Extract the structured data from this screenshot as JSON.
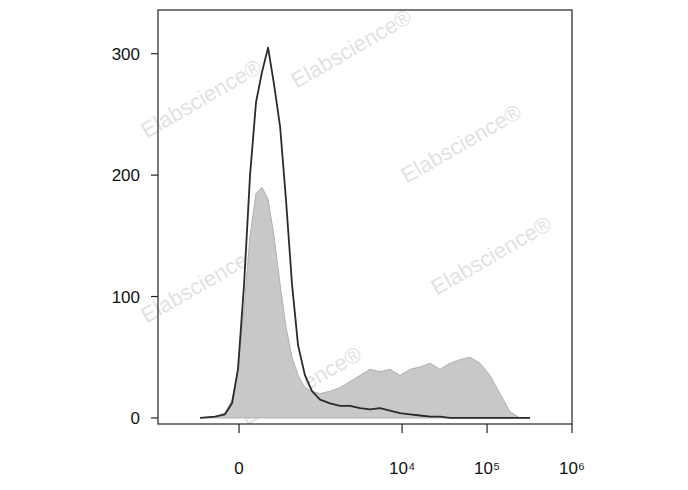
{
  "chart_data": {
    "type": "line",
    "log": "x",
    "x": [
      -305,
      -168,
      -94,
      -46,
      -7,
      33,
      73,
      115,
      160,
      210,
      264,
      327,
      396,
      478,
      572,
      700,
      855,
      1070,
      1407,
      1853,
      2434,
      3198,
      4193,
      5495,
      7206,
      9447,
      12400,
      16270,
      21330,
      27960,
      36650,
      48100,
      63070,
      82690,
      108400,
      142200,
      186500,
      244600,
      320700
    ],
    "series": [
      {
        "type": "area",
        "color": "#c8c8c8",
        "values": [
          0,
          1,
          4,
          15,
          40,
          90,
          150,
          185,
          190,
          180,
          150,
          110,
          75,
          50,
          35,
          25,
          22,
          20,
          22,
          25,
          30,
          35,
          40,
          38,
          40,
          35,
          40,
          42,
          45,
          40,
          45,
          48,
          50,
          45,
          35,
          20,
          5,
          0,
          0
        ]
      },
      {
        "type": "line",
        "color": "#2b2b2b",
        "values": [
          0,
          1,
          3,
          12,
          40,
          110,
          200,
          260,
          285,
          305,
          275,
          240,
          180,
          110,
          60,
          35,
          22,
          15,
          12,
          10,
          10,
          8,
          7,
          8,
          6,
          4,
          3,
          2,
          1,
          1,
          0,
          0,
          0,
          0,
          0,
          0,
          0,
          0,
          0
        ]
      }
    ],
    "xlim": [
      -1070,
      1000000
    ],
    "xticks": [
      0,
      {
        "value": 10000,
        "label": "10⁴"
      },
      {
        "value": 100000,
        "label": "10⁵"
      },
      {
        "value": 1000000,
        "label": "10⁶"
      }
    ],
    "ylim": [
      -5,
      336
    ],
    "yticks": [
      0,
      100,
      200,
      300
    ],
    "annotations": [
      "Elabscience®",
      "Elabscience®",
      "Elabscience®",
      "Elabscience®",
      "Elabscience®",
      "Elabscience®"
    ]
  }
}
